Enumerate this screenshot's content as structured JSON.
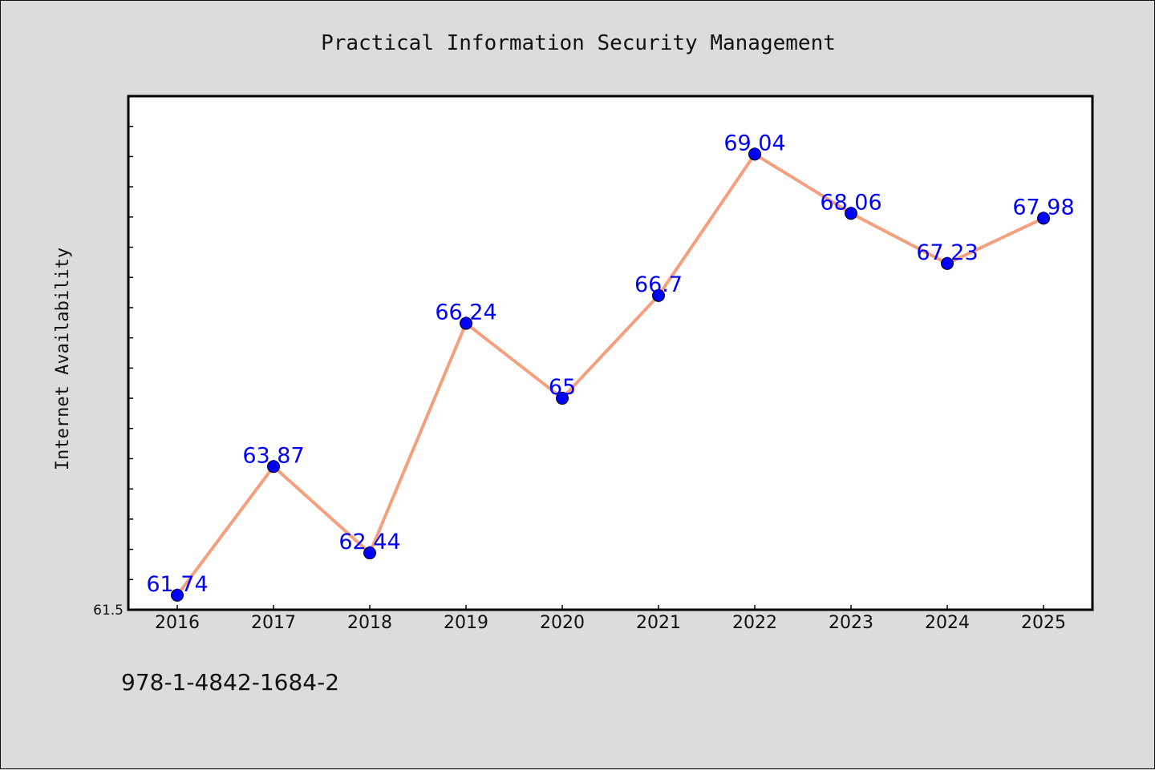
{
  "chart_data": {
    "type": "line",
    "title": "Practical Information Security Management",
    "xlabel": "",
    "ylabel": "Internet Availability",
    "categories": [
      "2016",
      "2017",
      "2018",
      "2019",
      "2020",
      "2021",
      "2022",
      "2023",
      "2024",
      "2025"
    ],
    "series": [
      {
        "values": [
          61.74,
          63.87,
          62.44,
          66.24,
          65,
          66.7,
          69.04,
          68.06,
          67.23,
          67.98
        ],
        "data_labels": [
          "61.74",
          "63.87",
          "62.44",
          "66.24",
          "65",
          "66.7",
          "69.04",
          "68.06",
          "67.23",
          "67.98"
        ],
        "line_color": "#f4a07e",
        "marker_color": "#0000ff"
      }
    ],
    "y_tick_labels": [
      {
        "value": 61.5,
        "label": "61.5"
      }
    ],
    "ylim": [
      61.5,
      70.0
    ],
    "grid": false,
    "legend": false
  },
  "footnote": "978-1-4842-1684-2"
}
